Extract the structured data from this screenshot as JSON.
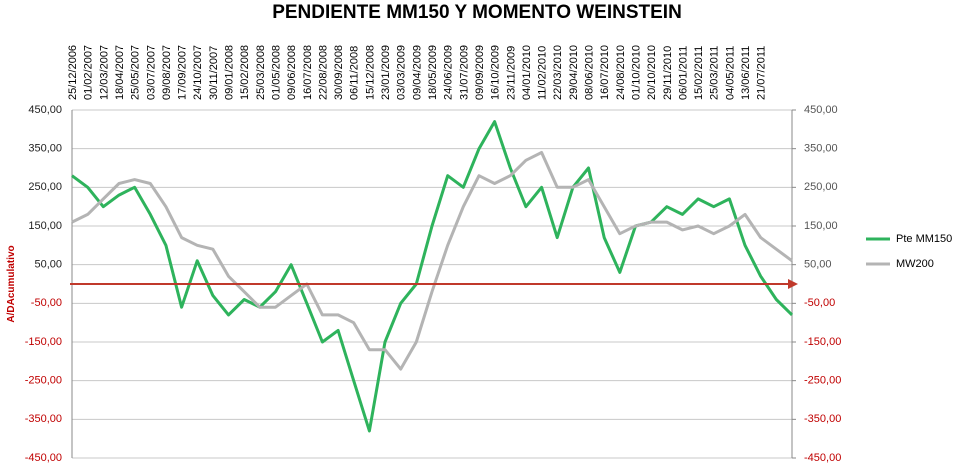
{
  "chart_data": {
    "type": "line",
    "title": "PENDIENTE MM150 Y MOMENTO WEINSTEIN",
    "y_label": "A/DAcumulativo",
    "categories": [
      "25/12/2006",
      "01/02/2007",
      "12/03/2007",
      "18/04/2007",
      "25/05/2007",
      "03/07/2007",
      "09/08/2007",
      "17/09/2007",
      "24/10/2007",
      "30/11/2007",
      "09/01/2008",
      "15/02/2008",
      "25/03/2008",
      "01/05/2008",
      "09/06/2008",
      "16/07/2008",
      "22/08/2008",
      "30/09/2008",
      "06/11/2008",
      "15/12/2008",
      "23/01/2009",
      "03/03/2009",
      "09/04/2009",
      "18/05/2009",
      "24/06/2009",
      "31/07/2009",
      "09/09/2009",
      "16/10/2009",
      "23/11/2009",
      "04/01/2010",
      "11/02/2010",
      "22/03/2010",
      "29/04/2010",
      "08/06/2010",
      "16/07/2010",
      "24/08/2010",
      "01/10/2010",
      "20/10/2010",
      "29/11/2010",
      "06/01/2011",
      "15/02/2011",
      "25/03/2011",
      "04/05/2011",
      "13/06/2011",
      "21/07/2011",
      null,
      null
    ],
    "series": [
      {
        "name": "Pte MM150",
        "color": "#2eb35c",
        "values": [
          280,
          250,
          200,
          230,
          250,
          180,
          100,
          -60,
          60,
          -30,
          -80,
          -40,
          -60,
          -20,
          50,
          -50,
          -150,
          -120,
          -250,
          -380,
          -150,
          -50,
          0,
          150,
          280,
          250,
          350,
          420,
          300,
          200,
          250,
          120,
          250,
          300,
          120,
          30,
          150,
          160,
          200,
          180,
          220,
          200,
          220,
          100,
          20,
          -40,
          -80
        ]
      },
      {
        "name": "MW200",
        "color": "#b4b4b4",
        "axis": "y2",
        "values": [
          160,
          180,
          220,
          260,
          270,
          260,
          200,
          120,
          100,
          90,
          20,
          -20,
          -60,
          -60,
          -30,
          0,
          -80,
          -80,
          -100,
          -170,
          -170,
          -220,
          -150,
          -20,
          100,
          200,
          280,
          260,
          280,
          320,
          340,
          250,
          250,
          270,
          200,
          130,
          150,
          160,
          160,
          140,
          150,
          130,
          150,
          180,
          120,
          90,
          60
        ]
      }
    ],
    "ylim": [
      -450,
      450
    ],
    "yticks": [
      {
        "value": 450,
        "label": "450,00"
      },
      {
        "value": 350,
        "label": "350,00"
      },
      {
        "value": 250,
        "label": "250,00"
      },
      {
        "value": 150,
        "label": "150,00"
      },
      {
        "value": 50,
        "label": "50,00"
      },
      {
        "value": -50,
        "label": "-50,00"
      },
      {
        "value": -150,
        "label": "-150,00"
      },
      {
        "value": -250,
        "label": "-250,00"
      },
      {
        "value": -350,
        "label": "-350,00"
      },
      {
        "value": -450,
        "label": "-450,00"
      }
    ],
    "y2lim": [
      -450,
      450
    ],
    "y2ticks": [
      {
        "value": 450,
        "label": "450,00"
      },
      {
        "value": 350,
        "label": "350,00"
      },
      {
        "value": 250,
        "label": "250,00"
      },
      {
        "value": 150,
        "label": "150,00"
      },
      {
        "value": 50,
        "label": "50,00"
      },
      {
        "value": -50,
        "label": "-50,00"
      },
      {
        "value": -150,
        "label": "-150,00"
      },
      {
        "value": -250,
        "label": "-250,00"
      },
      {
        "value": -350,
        "label": "-350,00"
      },
      {
        "value": -450,
        "label": "-450,00"
      }
    ],
    "grid": true,
    "reference_line": 0,
    "reference_color": "#c0392b"
  }
}
